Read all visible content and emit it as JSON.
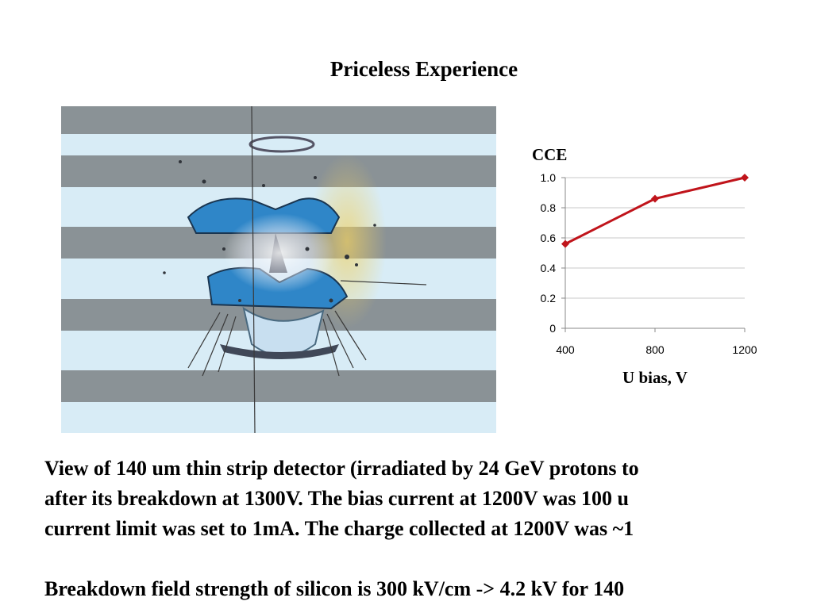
{
  "slide": {
    "title": "Priceless Experience",
    "paragraph_lines": [
      "View of 140 um thin strip detector (irradiated by 24 GeV protons to",
      "after its breakdown at 1300V. The bias current at 1200V was  100 u",
      "current limit was set to 1mA.  The charge collected at 1200V was ~1"
    ],
    "conclusion": "Breakdown field strength of silicon is 300 kV/cm  -> 4.2 kV for 140"
  },
  "photo": {
    "stripe_color": "#8a9296",
    "gap_color": "#d8ecf6",
    "damage_color": "#2f86c8"
  },
  "chart_data": {
    "type": "line",
    "ylabel": "CCE",
    "xlabel": "U bias, V",
    "x": [
      400,
      800,
      1200
    ],
    "series": [
      {
        "values": [
          0.56,
          0.86,
          1.0
        ],
        "color": "#c0141b"
      }
    ],
    "xticks": [
      "400",
      "800",
      "1200"
    ],
    "yticks": [
      "0",
      "0.2",
      "0.4",
      "0.6",
      "0.8",
      "1.0"
    ],
    "ylim": [
      0,
      1.0
    ],
    "xlim": [
      400,
      1200
    ],
    "grid": true,
    "legend": "none"
  }
}
